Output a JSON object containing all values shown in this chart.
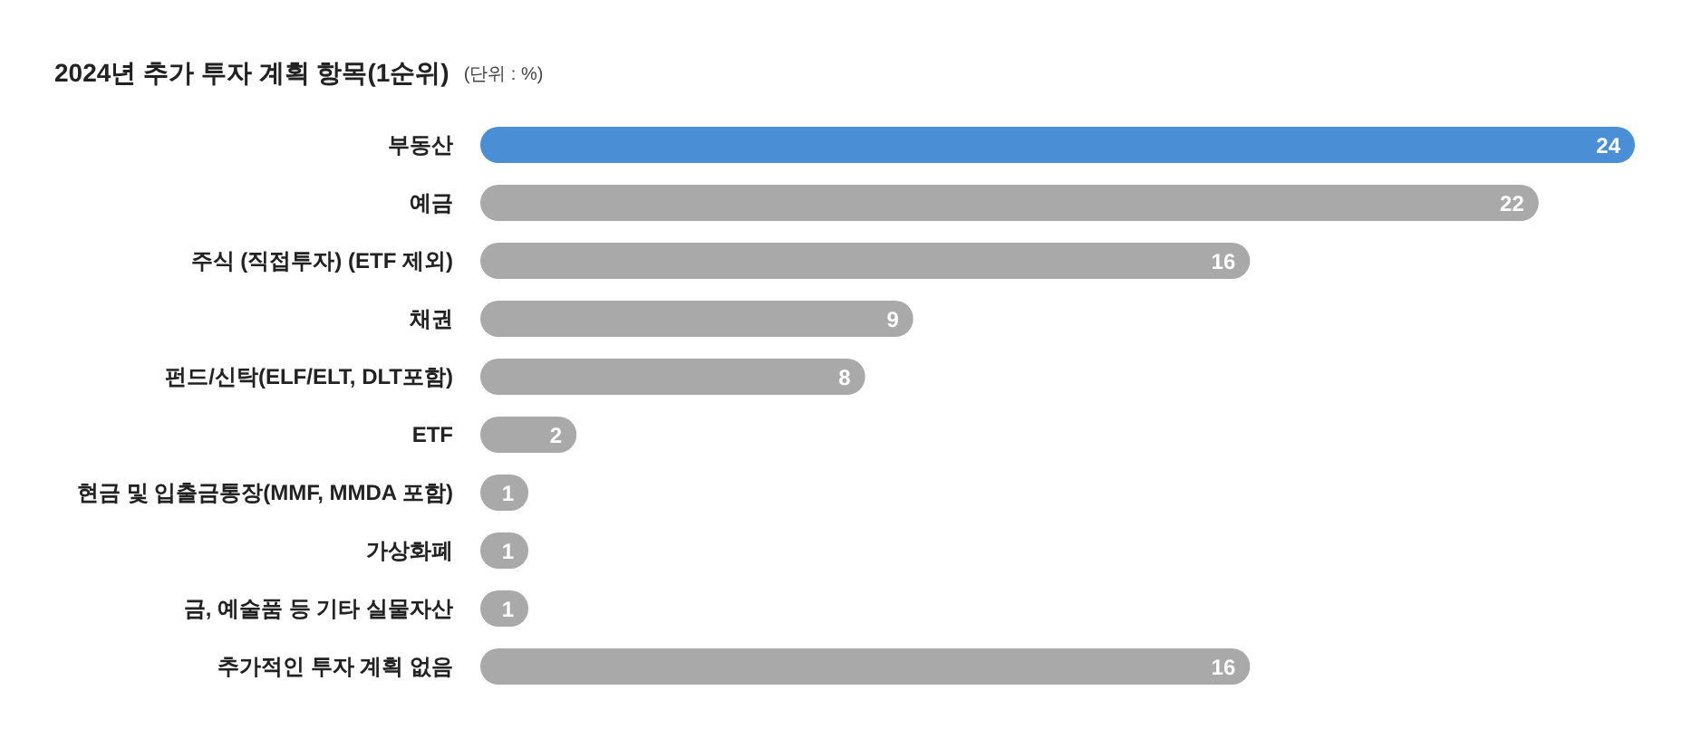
{
  "chart_data": {
    "type": "bar",
    "orientation": "horizontal",
    "title": "2024년 추가 투자 계획 항목(1순위)",
    "subtitle": "(단위 : %)",
    "categories": [
      "부동산",
      "예금",
      "주식 (직접투자) (ETF 제외)",
      "채권",
      "펀드/신탁(ELF/ELT, DLT포함)",
      "ETF",
      "현금 및 입출금통장(MMF, MMDA 포함)",
      "가상화폐",
      "금, 예술품 등 기타 실물자산",
      "추가적인 투자 계획 없음"
    ],
    "values": [
      24,
      22,
      16,
      9,
      8,
      2,
      1,
      1,
      1,
      16
    ],
    "colors": [
      "#4a8fd6",
      "#a9a9a9",
      "#a9a9a9",
      "#a9a9a9",
      "#a9a9a9",
      "#a9a9a9",
      "#a9a9a9",
      "#a9a9a9",
      "#a9a9a9",
      "#a9a9a9"
    ],
    "data_labels": true
  }
}
